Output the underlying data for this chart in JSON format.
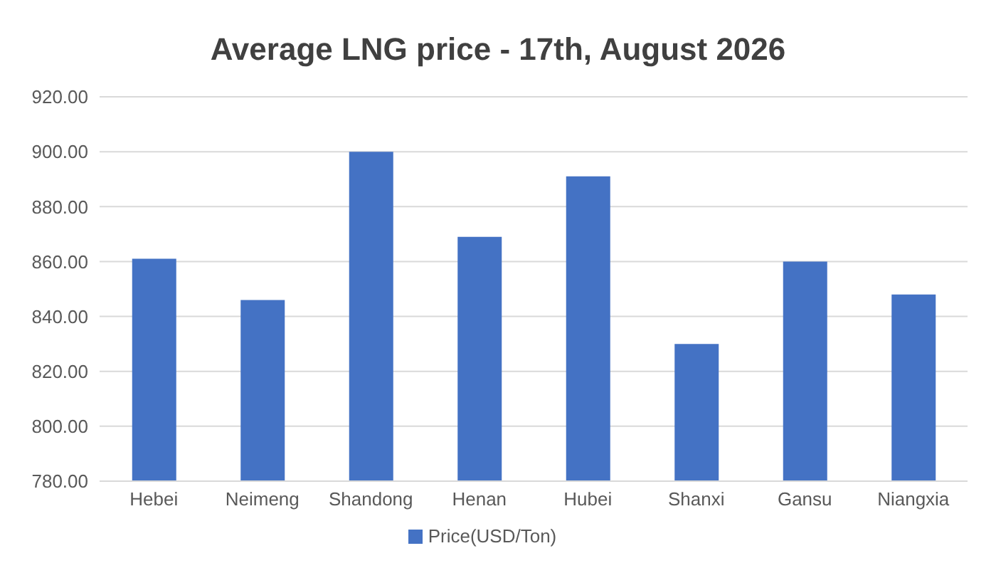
{
  "chart_data": {
    "type": "bar",
    "title": "Average LNG price - 17th, August 2026",
    "categories": [
      "Hebei",
      "Neimeng",
      "Shandong",
      "Henan",
      "Hubei",
      "Shanxi",
      "Gansu",
      "Niangxia"
    ],
    "series": [
      {
        "name": "Price(USD/Ton)",
        "color": "#4472c4",
        "values": [
          861,
          846,
          900,
          869,
          891,
          830,
          860,
          848
        ]
      }
    ],
    "ylim": [
      780,
      920
    ],
    "yticks": [
      {
        "value": 780,
        "label": "780.00"
      },
      {
        "value": 800,
        "label": "800.00"
      },
      {
        "value": 820,
        "label": "820.00"
      },
      {
        "value": 840,
        "label": "840.00"
      },
      {
        "value": 860,
        "label": "860.00"
      },
      {
        "value": 880,
        "label": "880.00"
      },
      {
        "value": 900,
        "label": "900.00"
      },
      {
        "value": 920,
        "label": "920.00"
      }
    ],
    "grid": "y",
    "legend": "bottom"
  }
}
